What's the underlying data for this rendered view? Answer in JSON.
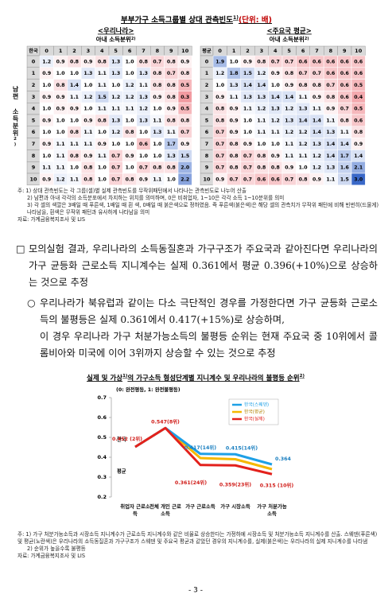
{
  "heatmap_title": {
    "text": "부부가구 소득그룹별 상대 관측빈도",
    "sup": "1)",
    "unit": "(단위: 배)"
  },
  "heatmaps": [
    {
      "label": "<우리나라>",
      "x_label": "아내 소득분위",
      "x_label_sup": "2)",
      "y_label": "남편 소득분위",
      "y_label_sup": "2)",
      "corner": "한국",
      "cols": [
        0,
        1,
        2,
        3,
        4,
        5,
        6,
        7,
        8,
        9,
        10
      ],
      "rows": [
        0,
        1,
        2,
        3,
        4,
        5,
        6,
        7,
        8,
        9,
        10
      ],
      "values": [
        [
          "1.2",
          "0.9",
          "0.8",
          "0.9",
          "0.8",
          "1.3",
          "1.0",
          "0.8",
          "0.7",
          "0.8",
          "0.9"
        ],
        [
          "0.9",
          "1.0",
          "1.0",
          "1.3",
          "1.1",
          "1.3",
          "1.0",
          "1.3",
          "0.8",
          "0.7",
          "0.8"
        ],
        [
          "1.0",
          "0.8",
          "1.4",
          "1.0",
          "1.1",
          "1.0",
          "1.2",
          "1.1",
          "0.8",
          "0.8",
          "0.5"
        ],
        [
          "0.9",
          "0.9",
          "1.1",
          "1.2",
          "1.5",
          "1.2",
          "1.2",
          "1.3",
          "0.9",
          "0.8",
          "0.3"
        ],
        [
          "1.0",
          "0.9",
          "0.9",
          "1.0",
          "1.1",
          "1.1",
          "1.1",
          "1.2",
          "1.0",
          "0.9",
          "0.5"
        ],
        [
          "0.9",
          "1.0",
          "1.0",
          "0.9",
          "0.8",
          "1.3",
          "1.0",
          "1.3",
          "1.1",
          "0.8",
          "0.8"
        ],
        [
          "1.0",
          "1.0",
          "0.8",
          "1.1",
          "1.0",
          "1.2",
          "0.8",
          "1.0",
          "1.3",
          "1.1",
          "0.7"
        ],
        [
          "0.9",
          "1.1",
          "1.1",
          "1.1",
          "0.9",
          "1.0",
          "1.0",
          "0.6",
          "1.0",
          "1.7",
          "0.9"
        ],
        [
          "1.0",
          "1.1",
          "0.8",
          "0.9",
          "1.1",
          "0.7",
          "0.9",
          "1.0",
          "1.0",
          "1.3",
          "1.5"
        ],
        [
          "1.1",
          "1.1",
          "1.0",
          "0.8",
          "1.0",
          "0.7",
          "1.0",
          "0.7",
          "0.8",
          "0.8",
          "2.0"
        ],
        [
          "0.9",
          "1.2",
          "1.1",
          "0.8",
          "1.0",
          "0.7",
          "0.8",
          "0.9",
          "1.1",
          "1.0",
          "2.2"
        ]
      ]
    },
    {
      "label": "<주요국 평균>",
      "x_label": "아내 소득분위",
      "x_label_sup": "2)",
      "corner": "평균",
      "cols": [
        0,
        1,
        2,
        3,
        4,
        5,
        6,
        7,
        8,
        9,
        10
      ],
      "rows": [
        0,
        1,
        2,
        3,
        4,
        5,
        6,
        7,
        8,
        9,
        10
      ],
      "values": [
        [
          "1.9",
          "1.0",
          "0.9",
          "0.8",
          "0.7",
          "0.7",
          "0.6",
          "0.6",
          "0.6",
          "0.6",
          "0.6"
        ],
        [
          "1.2",
          "1.8",
          "1.5",
          "1.2",
          "0.9",
          "0.8",
          "0.7",
          "0.7",
          "0.6",
          "0.6",
          "0.6"
        ],
        [
          "1.0",
          "1.3",
          "1.4",
          "1.4",
          "1.0",
          "0.9",
          "0.8",
          "0.8",
          "0.7",
          "0.6",
          "0.5"
        ],
        [
          "0.9",
          "1.1",
          "1.3",
          "1.3",
          "1.4",
          "1.4",
          "1.1",
          "0.9",
          "0.8",
          "0.6",
          "0.4"
        ],
        [
          "0.8",
          "0.9",
          "1.1",
          "1.2",
          "1.3",
          "1.2",
          "1.3",
          "1.1",
          "0.9",
          "0.7",
          "0.5"
        ],
        [
          "0.8",
          "0.9",
          "1.0",
          "1.1",
          "1.2",
          "1.3",
          "1.4",
          "1.4",
          "1.1",
          "0.8",
          "0.6"
        ],
        [
          "0.7",
          "0.9",
          "1.0",
          "1.1",
          "1.1",
          "1.2",
          "1.2",
          "1.4",
          "1.3",
          "1.1",
          "0.8"
        ],
        [
          "0.7",
          "0.8",
          "0.9",
          "1.0",
          "1.0",
          "1.1",
          "1.2",
          "1.3",
          "1.4",
          "1.4",
          "0.9"
        ],
        [
          "0.7",
          "0.8",
          "0.7",
          "0.8",
          "0.9",
          "1.1",
          "1.1",
          "1.2",
          "1.4",
          "1.7",
          "1.4"
        ],
        [
          "0.7",
          "0.8",
          "0.7",
          "0.8",
          "0.8",
          "0.9",
          "1.0",
          "1.2",
          "1.3",
          "1.6",
          "2.1"
        ],
        [
          "0.9",
          "0.7",
          "0.7",
          "0.6",
          "0.6",
          "0.7",
          "0.8",
          "0.9",
          "1.1",
          "1.5",
          "3.0"
        ]
      ]
    }
  ],
  "heatmap_notes": [
    "주: 1) 상대 관측빈도는 각 그룹(셀)별 실제 관측빈도를 무작위패턴에서 나타나는 관측빈도로 나누어 산출",
    "2) 남편과 아내 각각의 소득분포에서 차지하는 위치를 의미하며, 0은 비취업자, 1~10은 각각 소득 1~10분위를 의미",
    "3) 각 셀의 색깔은 3배일 때 푸른색, 1배일 때 흰 색, 0배일 때 붉은색으로 정하였음. 즉 푸른색(붉은색)은 해당 셀의 관측치가 무작위 패턴에 비해 빈번히(드물게) 나타남을, 흰색은 무작위 패턴과 유사하게 나타남을 의미"
  ],
  "heatmap_source": "자료: 가계금융복지조사 및 LIS",
  "paragraphs": [
    {
      "marker": "□",
      "text": "모의실험 결과, 우리나라의 소득동질혼과 가구구조가 주요국과 같아진다면 우리나라의 가구 균등화 근로소득 지니계수는 실제 0.361에서 평균 0.396(+10%)으로 상승하는 것으로 추정"
    },
    {
      "marker": "○",
      "text": "우리나라가 북유럽과 같이는 다소 극단적인 경우를 가정한다면 가구 균등화 근로소득의 불평등은 실제 0.361에서 0.417(+15%)로 상승하며,"
    },
    {
      "text": "이 경우 우리나라 가구 처분가능소득의 불평등 순위는 현재 주요국 중 10위에서 콜롬비아와 미국에 이어 3위까지 상승할 수 있는 것으로 추정"
    }
  ],
  "chart_data": {
    "type": "line",
    "title": "실제 및 가상",
    "title_sup1": "1)",
    "title_rest": "의 가구소득 형성단계별 지니계수 및 우리나라의 불평등 순위",
    "title_sup2": "2)",
    "subtitle": "(0: 완전평등, 1: 완전불평등)",
    "categories": [
      "취업자 근로소득",
      "전체 개인 근로소득",
      "가구 근로소득",
      "가구 시장소득",
      "가구 처분가능소득"
    ],
    "series": [
      {
        "name": "한국(스웨덴)",
        "color": "#1ea0e6",
        "values": [
          0.452,
          0.547,
          0.417,
          0.415,
          0.364
        ],
        "value_labels": [
          null,
          null,
          "0.417(14위)",
          "0.415(14위)",
          "0.364"
        ]
      },
      {
        "name": "한국(평균)",
        "color": "#f5b800",
        "values": [
          0.452,
          0.547,
          0.396,
          0.39,
          0.34
        ]
      },
      {
        "name": "한국(실제)",
        "color": "#e3211c",
        "values": [
          0.452,
          0.547,
          0.361,
          0.359,
          0.315
        ],
        "value_labels": [
          "0.452 (2위)",
          "0.547(8위)",
          "0.361(24위)",
          "0.359(23위)",
          "0.315 (10위)"
        ]
      }
    ],
    "ylim": [
      0.2,
      0.7
    ],
    "yticks": [
      0.2,
      0.3,
      0.4,
      0.5,
      0.6,
      0.7
    ],
    "annotations": [
      "한국",
      "평균"
    ]
  },
  "chart_notes": [
    "주: 1) 가구 처분가능소득과 시장소득 지니계수가 근로소득 지니계수와 같은 비율로 상승한다는 가정하에 시장소득 및 처분가능소득 지니계수를 산출. 스웨덴(푸른색) 및 평균(노란색)은 우리나라의 소득동질혼과 가구구조가 스웨덴 및 주요국 평균과 같았던 경우의 지니계수를, 실제(붉은색)는 우리나라의 실제 지니계수를 나타냄",
    "2) 순위가 높을수록 불평등"
  ],
  "chart_source": "자료: 가계금융복지조사 및 LIS",
  "page_number": "- 3 -"
}
